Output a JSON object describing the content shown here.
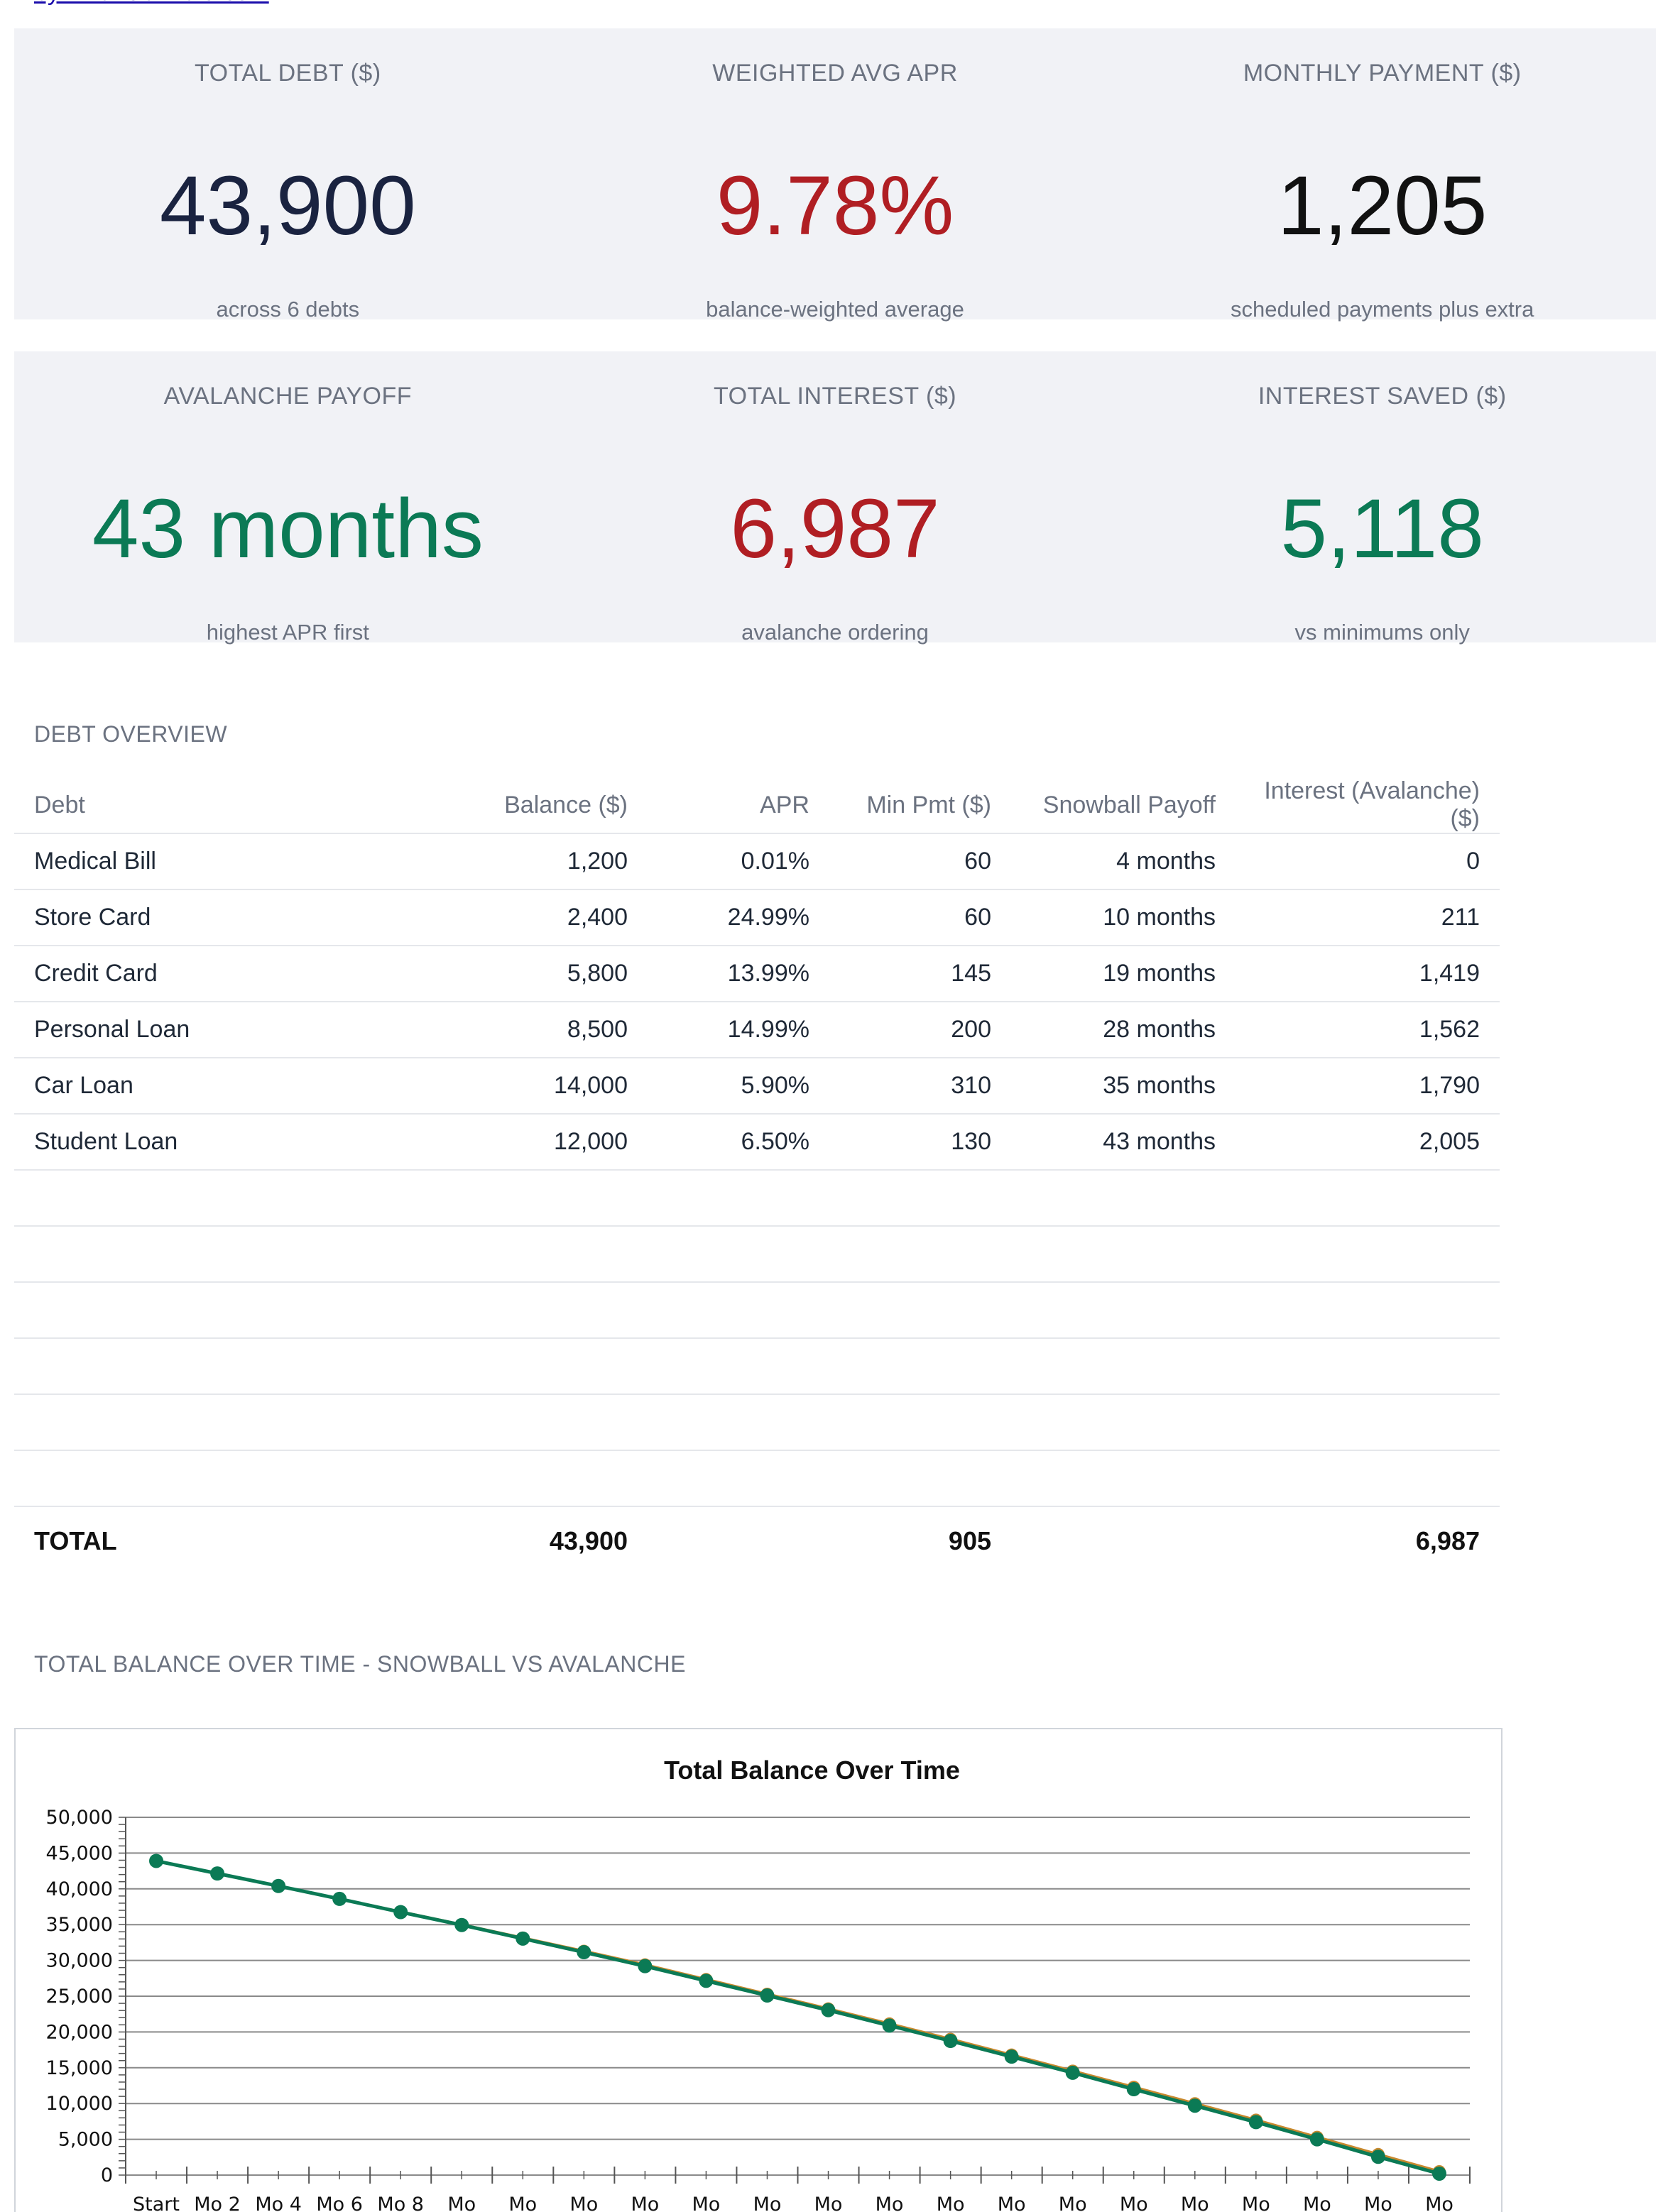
{
  "brand": {
    "link_text": "by FinancialAlaid.com"
  },
  "summary_row1": [
    {
      "label": "TOTAL DEBT ($)",
      "value": "43,900",
      "sub": "across 6 debts",
      "color": "#1a2340"
    },
    {
      "label": "WEIGHTED AVG APR",
      "value": "9.78%",
      "sub": "balance-weighted average",
      "color": "#b01e23"
    },
    {
      "label": "MONTHLY PAYMENT ($)",
      "value": "1,205",
      "sub": "scheduled payments plus extra",
      "color": "#111111"
    }
  ],
  "summary_row2": [
    {
      "label": "AVALANCHE PAYOFF",
      "value": "43 months",
      "sub": "highest APR first",
      "color": "#0b7a55"
    },
    {
      "label": "TOTAL INTEREST ($)",
      "value": "6,987",
      "sub": "avalanche ordering",
      "color": "#b01e23"
    },
    {
      "label": "INTEREST SAVED ($)",
      "value": "5,118",
      "sub": "vs minimums only",
      "color": "#0b7a55"
    }
  ],
  "overview": {
    "title": "DEBT OVERVIEW",
    "headers": [
      "Debt",
      "Balance ($)",
      "APR",
      "Min Pmt ($)",
      "Snowball Payoff",
      "Interest (Avalanche) ($)"
    ],
    "rows": [
      [
        "Medical Bill",
        "1,200",
        "0.01%",
        "60",
        "4 months",
        "0"
      ],
      [
        "Store Card",
        "2,400",
        "24.99%",
        "60",
        "10 months",
        "211"
      ],
      [
        "Credit Card",
        "5,800",
        "13.99%",
        "145",
        "19 months",
        "1,419"
      ],
      [
        "Personal Loan",
        "8,500",
        "14.99%",
        "200",
        "28 months",
        "1,562"
      ],
      [
        "Car Loan",
        "14,000",
        "5.90%",
        "310",
        "35 months",
        "1,790"
      ],
      [
        "Student Loan",
        "12,000",
        "6.50%",
        "130",
        "43 months",
        "2,005"
      ]
    ],
    "total": {
      "label": "TOTAL",
      "balance": "43,900",
      "min_pmt": "905",
      "interest": "6,987"
    }
  },
  "chart_section": {
    "title": "TOTAL BALANCE OVER TIME - SNOWBALL VS AVALANCHE"
  },
  "chart_data": {
    "type": "line",
    "title": "Total Balance Over Time",
    "xlabel": "",
    "ylabel": "",
    "ylim": [
      0,
      50000
    ],
    "yticks": [
      0,
      5000,
      10000,
      15000,
      20000,
      25000,
      30000,
      35000,
      40000,
      45000,
      50000
    ],
    "ytick_labels": [
      "0",
      "5,000",
      "10,000",
      "15,000",
      "20,000",
      "25,000",
      "30,000",
      "35,000",
      "40,000",
      "45,000",
      "50,000"
    ],
    "categories": [
      "Start",
      "Mo 2",
      "Mo 4",
      "Mo 6",
      "Mo 8",
      "Mo",
      "Mo",
      "Mo",
      "Mo",
      "Mo",
      "Mo",
      "Mo",
      "Mo",
      "Mo",
      "Mo",
      "Mo",
      "Mo",
      "Mo",
      "Mo",
      "Mo",
      "Mo",
      "Mo"
    ],
    "grid": true,
    "legend": "none",
    "series": [
      {
        "color": "#c8892e",
        "values": [
          43900,
          42150,
          40400,
          38600,
          36800,
          35000,
          33150,
          31300,
          29400,
          27350,
          25300,
          23250,
          21150,
          19000,
          16800,
          14550,
          12300,
          10000,
          7700,
          5300,
          2900,
          500
        ]
      },
      {
        "color": "#0b7a55",
        "values": [
          43900,
          42150,
          40400,
          38600,
          36750,
          34950,
          33050,
          31150,
          29200,
          27150,
          25100,
          23050,
          20900,
          18750,
          16550,
          14300,
          12000,
          9700,
          7400,
          5000,
          2550,
          200
        ]
      }
    ]
  }
}
